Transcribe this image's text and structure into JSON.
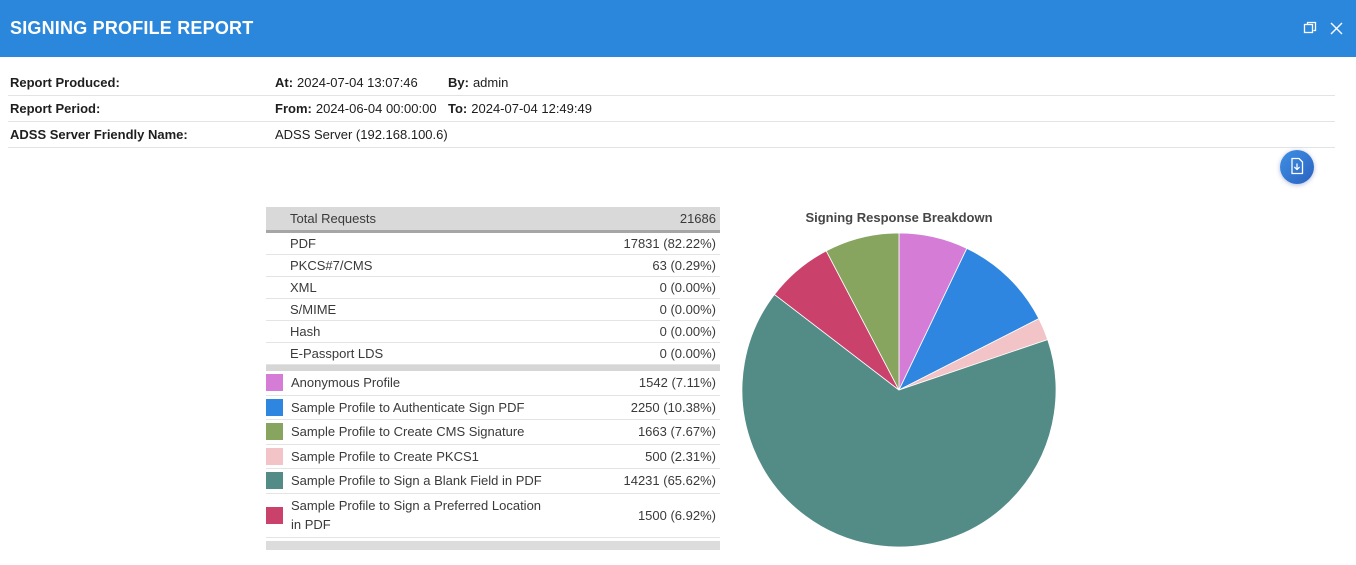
{
  "window": {
    "title": "SIGNING PROFILE REPORT",
    "icons": {
      "restore": "restore-window-icon",
      "close": "close-icon",
      "export": "document-download-icon"
    }
  },
  "colors": {
    "titlebar": "#2b87dc",
    "table_header_bg": "#d9d9d9",
    "table_header_border": "#a6a6a6",
    "row_divider": "#e4e4e4",
    "section_separator": "#d6d6d6",
    "scrollbar": "#dcdcdc"
  },
  "meta": {
    "rows": [
      {
        "label": "Report Produced:",
        "fields": [
          {
            "k": "At:",
            "v": "2024-07-04 13:07:46"
          },
          {
            "k": "By:",
            "v": "admin"
          }
        ]
      },
      {
        "label": "Report Period:",
        "fields": [
          {
            "k": "From:",
            "v": "2024-06-04 00:00:00"
          },
          {
            "k": "To:",
            "v": "2024-07-04 12:49:49"
          }
        ]
      },
      {
        "label": "ADSS Server Friendly Name:",
        "fields": [
          {
            "k": "",
            "v": "ADSS Server (192.168.100.6)"
          }
        ]
      }
    ]
  },
  "table": {
    "header": {
      "label": "Total Requests",
      "value": "21686"
    },
    "format_rows": [
      {
        "label": "PDF",
        "value": "17831 (82.22%)"
      },
      {
        "label": "PKCS#7/CMS",
        "value": "63 (0.29%)"
      },
      {
        "label": "XML",
        "value": "0 (0.00%)"
      },
      {
        "label": "S/MIME",
        "value": "0 (0.00%)"
      },
      {
        "label": "Hash",
        "value": "0 (0.00%)"
      },
      {
        "label": "E-Passport LDS",
        "value": "0 (0.00%)"
      }
    ],
    "profile_rows": [
      {
        "label": "Anonymous Profile",
        "value": "1542 (7.11%)",
        "color": "#d47cd6"
      },
      {
        "label": "Sample Profile to Authenticate Sign PDF",
        "value": "2250 (10.38%)",
        "color": "#2e86e0"
      },
      {
        "label": "Sample Profile to Create CMS Signature",
        "value": "1663 (7.67%)",
        "color": "#87a55e"
      },
      {
        "label": "Sample Profile to Create PKCS1",
        "value": "500 (2.31%)",
        "color": "#f2c3c7"
      },
      {
        "label": "Sample Profile to Sign a Blank Field in PDF",
        "value": "14231 (65.62%)",
        "color": "#538c86"
      },
      {
        "label": "Sample Profile to Sign a Preferred Location in PDF",
        "value": "1500 (6.92%)",
        "color": "#ca416c"
      }
    ]
  },
  "chart_data": {
    "type": "pie",
    "title": "Signing Response Breakdown",
    "total": 21686,
    "start_angle_deg": -90,
    "direction": "clockwise",
    "legend_position": "none",
    "slices": [
      {
        "label": "Anonymous Profile",
        "value": 1542,
        "pct": 7.11,
        "color": "#d47cd6"
      },
      {
        "label": "Sample Profile to Authenticate Sign PDF",
        "value": 2250,
        "pct": 10.38,
        "color": "#2e86e0"
      },
      {
        "label": "Sample Profile to Create PKCS1",
        "value": 500,
        "pct": 2.31,
        "color": "#f2c3c7"
      },
      {
        "label": "Sample Profile to Sign a Blank Field in PDF",
        "value": 14231,
        "pct": 65.62,
        "color": "#538c86"
      },
      {
        "label": "Sample Profile to Sign a Preferred Location in PDF",
        "value": 1500,
        "pct": 6.92,
        "color": "#ca416c"
      },
      {
        "label": "Sample Profile to Create CMS Signature",
        "value": 1663,
        "pct": 7.67,
        "color": "#87a55e"
      }
    ]
  }
}
